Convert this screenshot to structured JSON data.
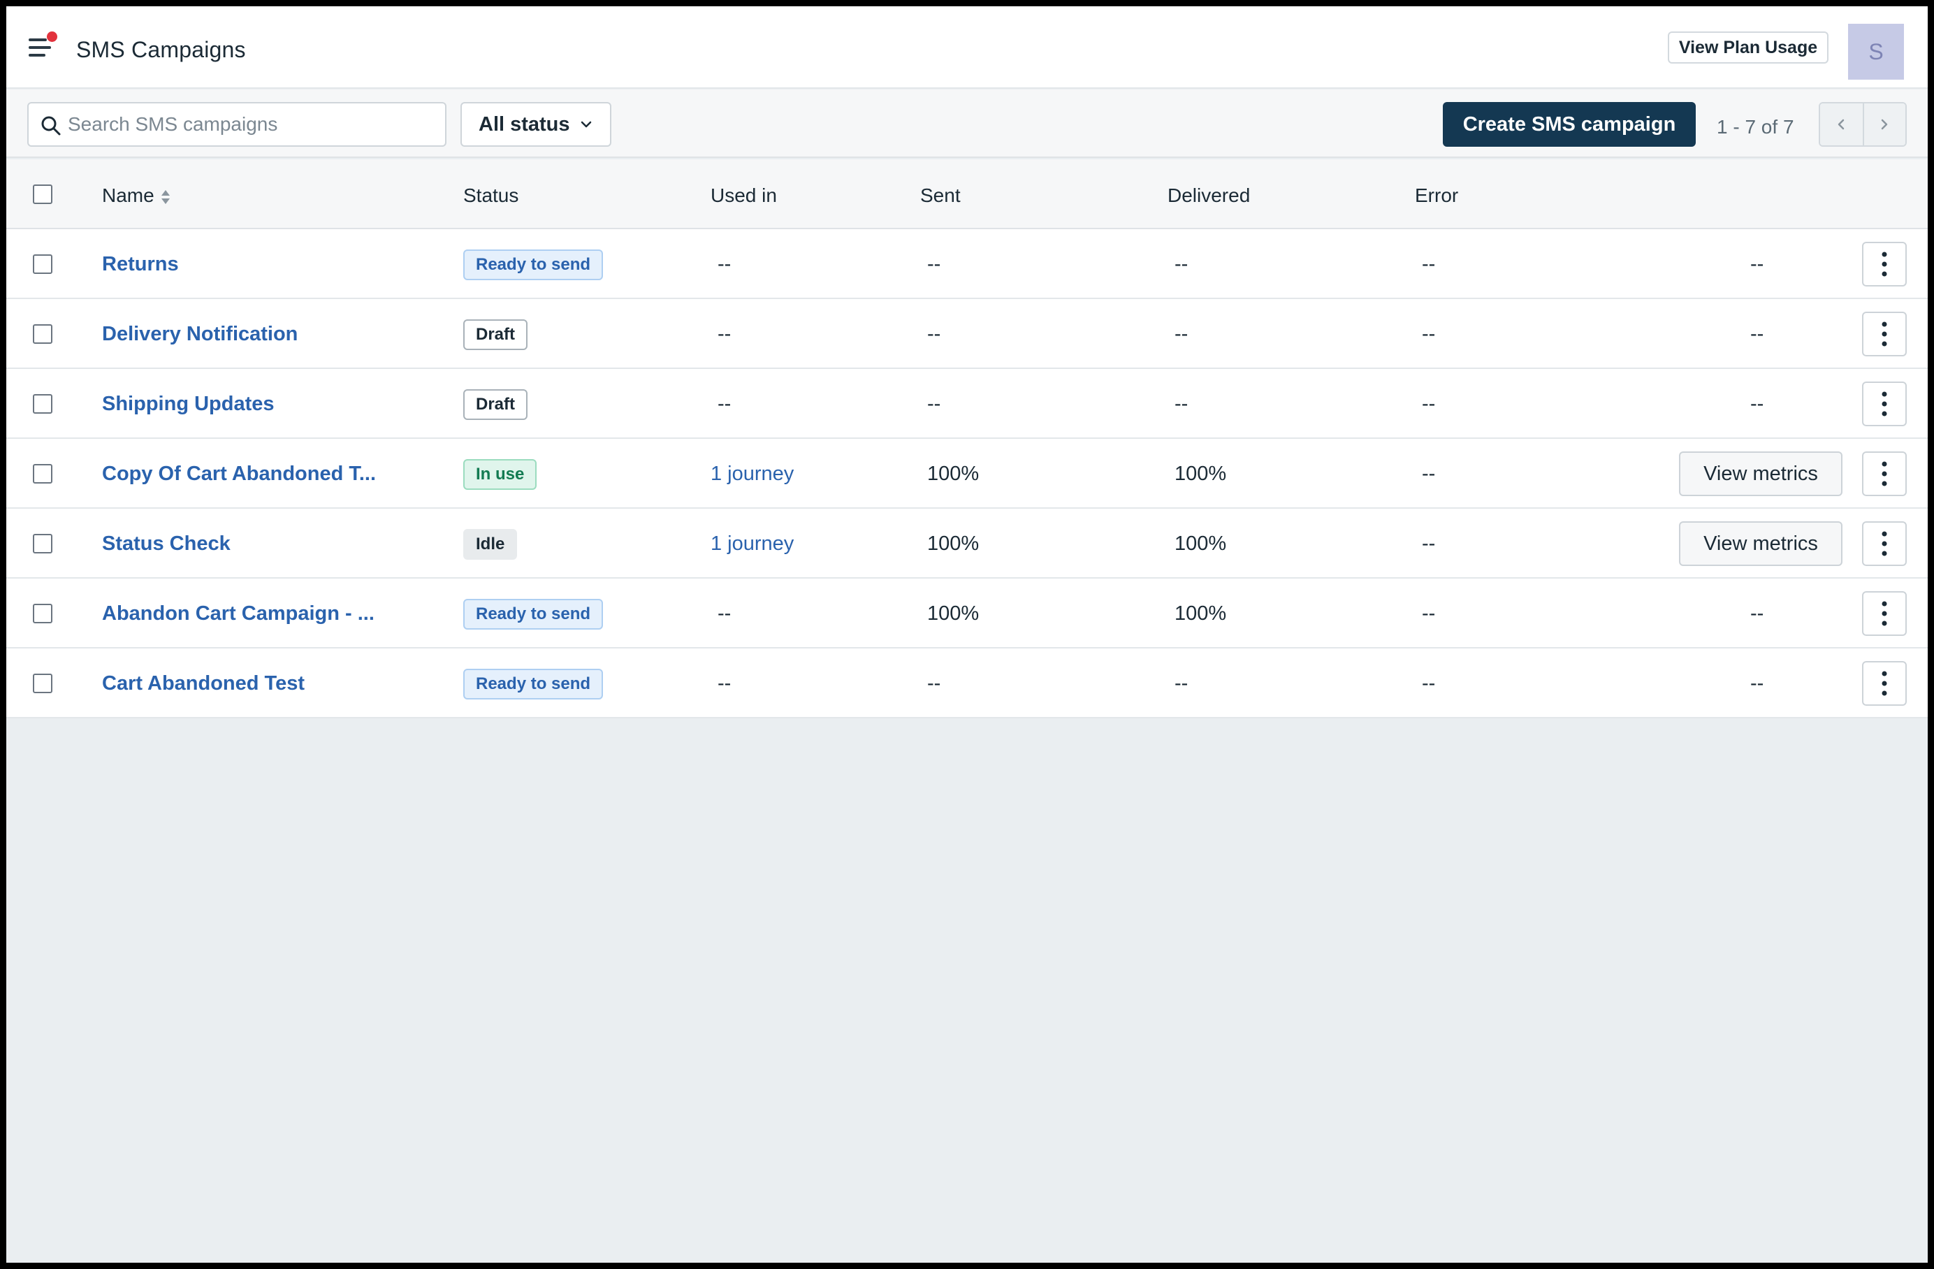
{
  "header": {
    "title": "SMS Campaigns",
    "plan_button": "View Plan Usage",
    "avatar_initial": "S",
    "notification_color": "#e2323c"
  },
  "toolbar": {
    "search_placeholder": "Search SMS campaigns",
    "search_value": "",
    "status_filter": "All status",
    "create_button": "Create SMS campaign",
    "pagination": "1 - 7 of 7"
  },
  "table": {
    "columns": {
      "name": "Name",
      "status": "Status",
      "used_in": "Used in",
      "sent": "Sent",
      "delivered": "Delivered",
      "error": "Error"
    },
    "rows": [
      {
        "name": "Returns",
        "status": "Ready to send",
        "status_type": "ready",
        "used_in": "--",
        "sent": "--",
        "delivered": "--",
        "error": "--",
        "action": "--"
      },
      {
        "name": "Delivery Notification",
        "status": "Draft",
        "status_type": "draft",
        "used_in": "--",
        "sent": "--",
        "delivered": "--",
        "error": "--",
        "action": "--"
      },
      {
        "name": "Shipping Updates",
        "status": "Draft",
        "status_type": "draft",
        "used_in": "--",
        "sent": "--",
        "delivered": "--",
        "error": "--",
        "action": "--"
      },
      {
        "name": "Copy Of Cart Abandoned T...",
        "status": "In use",
        "status_type": "inuse",
        "used_in": "1 journey",
        "sent": "100%",
        "delivered": "100%",
        "error": "--",
        "action": "View metrics"
      },
      {
        "name": "Status Check",
        "status": "Idle",
        "status_type": "idle",
        "used_in": "1 journey",
        "sent": "100%",
        "delivered": "100%",
        "error": "--",
        "action": "View metrics"
      },
      {
        "name": "Abandon Cart Campaign - ...",
        "status": "Ready to send",
        "status_type": "ready",
        "used_in": "--",
        "sent": "100%",
        "delivered": "100%",
        "error": "--",
        "action": "--"
      },
      {
        "name": "Cart Abandoned Test",
        "status": "Ready to send",
        "status_type": "ready",
        "used_in": "--",
        "sent": "--",
        "delivered": "--",
        "error": "--",
        "action": "--"
      }
    ]
  }
}
